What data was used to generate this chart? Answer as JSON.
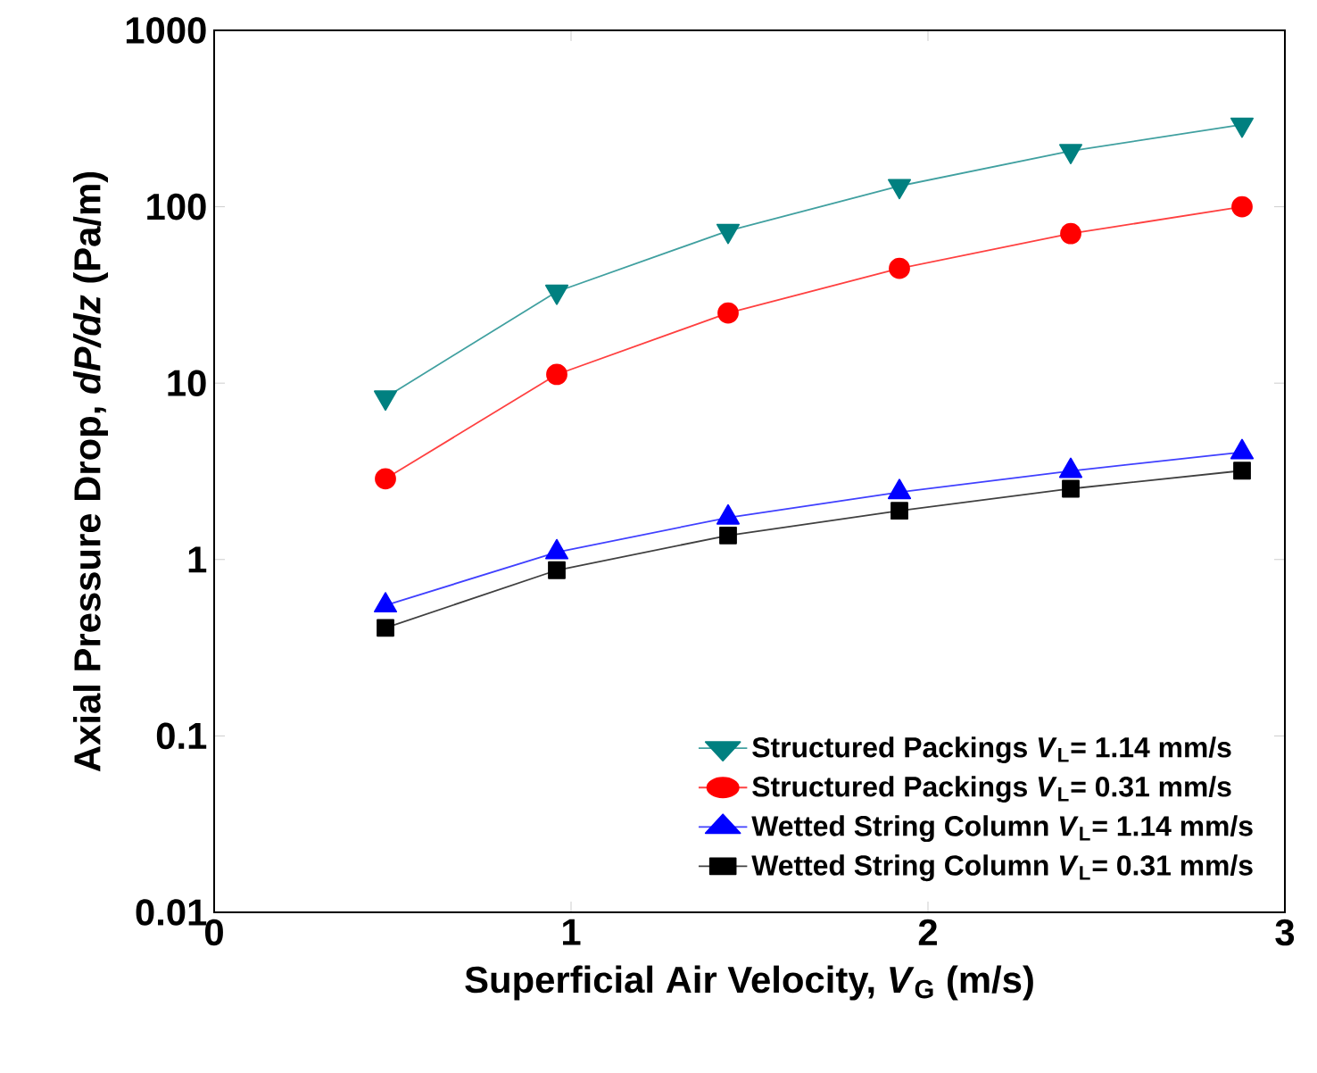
{
  "chart_data": {
    "type": "line",
    "xlabel": "Superficial Air Velocity, *V*$_{G}$ (m/s)",
    "ylabel": "Axial Pressure Drop, *dP/dz* (Pa/m)",
    "x": [
      0.48,
      0.96,
      1.44,
      1.92,
      2.4,
      2.88
    ],
    "series": [
      {
        "name": "Structured Packings *V*$_{L}$= 1.14 mm/s",
        "color": "#008080",
        "marker": "triangle_down",
        "values": [
          8.3,
          33,
          73,
          131,
          207,
          292
        ]
      },
      {
        "name": "Structured Packings *V*$_{L}$= 0.31 mm/s",
        "color": "#ff0000",
        "marker": "circle",
        "values": [
          2.87,
          11.2,
          25,
          44.7,
          70.4,
          100
        ]
      },
      {
        "name": "Wetted String Column *V*$_{L}$= 1.14 mm/s",
        "color": "#0000ff",
        "marker": "triangle",
        "values": [
          0.55,
          1.1,
          1.73,
          2.41,
          3.18,
          4.06
        ]
      },
      {
        "name": "Wetted String Column *V*$_{L}$= 0.31 mm/s",
        "color": "#000000",
        "marker": "square",
        "values": [
          0.41,
          0.87,
          1.37,
          1.89,
          2.52,
          3.19
        ]
      }
    ],
    "xlim": [
      0,
      3
    ],
    "xticks": [
      0,
      1,
      2,
      3
    ],
    "ylim": [
      0.01,
      1000
    ],
    "yticks": [
      0.01,
      0.1,
      1,
      10,
      100,
      1000
    ],
    "log": "y",
    "legend": "bottom right",
    "line_style": "solid"
  }
}
